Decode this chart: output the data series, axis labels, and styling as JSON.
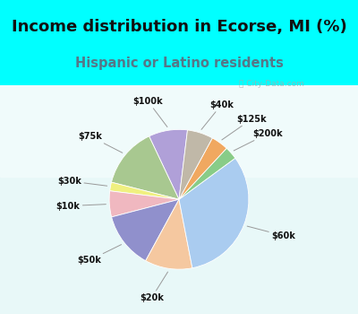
{
  "title": "Income distribution in Ecorse, MI (%)",
  "subtitle": "Hispanic or Latino residents",
  "watermark": "ⓘ City-Data.com",
  "labels": [
    "$100k",
    "$75k",
    "$30k",
    "$10k",
    "$50k",
    "$20k",
    "$60k",
    "$200k",
    "$125k",
    "$40k"
  ],
  "values": [
    9,
    14,
    2,
    6,
    13,
    11,
    32,
    3,
    4,
    6
  ],
  "colors": [
    "#b0a0d8",
    "#a8c890",
    "#f0f080",
    "#f0b8c0",
    "#9090cc",
    "#f5c8a0",
    "#aaccf0",
    "#88cc88",
    "#f0a860",
    "#c0b8a8"
  ],
  "bg_color_top": "#00ffff",
  "bg_color_chart_top": "#e8f8f8",
  "bg_color_chart_bottom": "#d8ecd8",
  "title_fontsize": 13,
  "subtitle_fontsize": 10.5,
  "startangle": 83
}
